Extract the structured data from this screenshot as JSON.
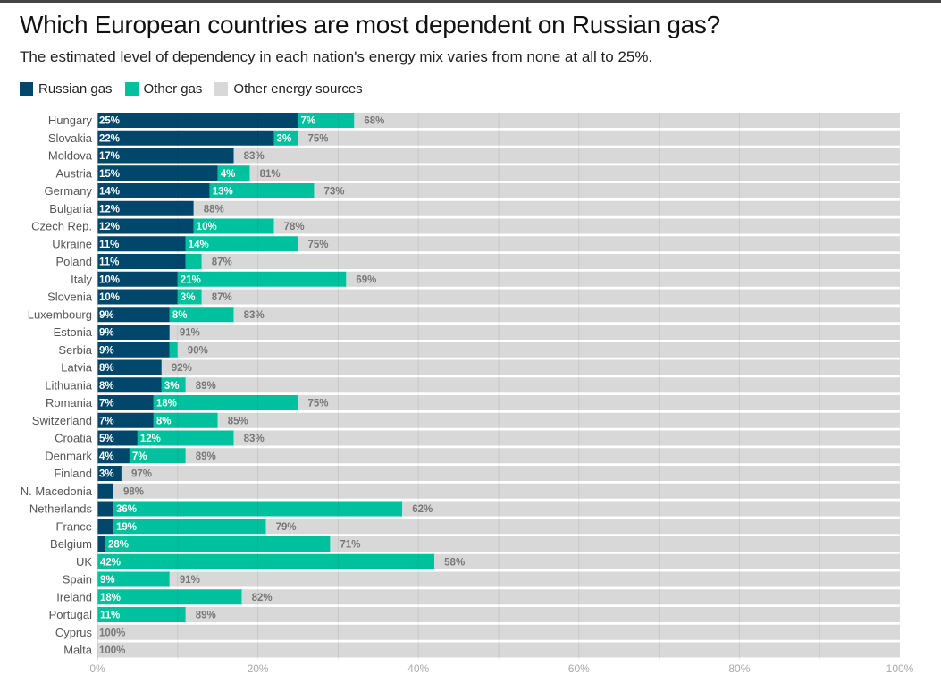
{
  "title": "Which European countries are most dependent on Russian gas?",
  "subtitle": "The estimated level of dependency in each nation's energy mix varies from none at all to 25%.",
  "chart_data": {
    "type": "bar",
    "orientation": "horizontal-stacked",
    "title": "Which European countries are most dependent on Russian gas?",
    "subtitle": "The estimated level of dependency in each nation's energy mix varies from none at all to 25%.",
    "xlim": [
      0,
      100
    ],
    "xticks": [
      "0%",
      "20%",
      "40%",
      "60%",
      "80%",
      "100%"
    ],
    "grid": true,
    "legend_position": "top-left",
    "categories": [
      "Hungary",
      "Slovakia",
      "Moldova",
      "Austria",
      "Germany",
      "Bulgaria",
      "Czech Rep.",
      "Ukraine",
      "Poland",
      "Italy",
      "Slovenia",
      "Luxembourg",
      "Estonia",
      "Serbia",
      "Latvia",
      "Lithuania",
      "Romania",
      "Switzerland",
      "Croatia",
      "Denmark",
      "Finland",
      "N. Macedonia",
      "Netherlands",
      "France",
      "Belgium",
      "UK",
      "Spain",
      "Ireland",
      "Portugal",
      "Cyprus",
      "Malta"
    ],
    "series": [
      {
        "name": "Russian gas",
        "color": "#00476b",
        "values": [
          25,
          22,
          17,
          15,
          14,
          12,
          12,
          11,
          11,
          10,
          10,
          9,
          9,
          9,
          8,
          8,
          7,
          7,
          5,
          4,
          3,
          2,
          2,
          2,
          1,
          0,
          0,
          0,
          0,
          0,
          0
        ]
      },
      {
        "name": "Other gas",
        "color": "#00c19e",
        "values": [
          7,
          3,
          0,
          4,
          13,
          0,
          10,
          14,
          2,
          21,
          3,
          8,
          0,
          1,
          0,
          3,
          18,
          8,
          12,
          7,
          0,
          0,
          36,
          19,
          28,
          42,
          9,
          18,
          11,
          0,
          0
        ]
      },
      {
        "name": "Other energy sources",
        "color": "#d8d8d8",
        "values": [
          68,
          75,
          83,
          81,
          73,
          88,
          78,
          75,
          87,
          69,
          87,
          83,
          91,
          90,
          92,
          89,
          75,
          85,
          83,
          89,
          97,
          98,
          62,
          79,
          71,
          58,
          91,
          82,
          89,
          100,
          100
        ]
      }
    ]
  }
}
